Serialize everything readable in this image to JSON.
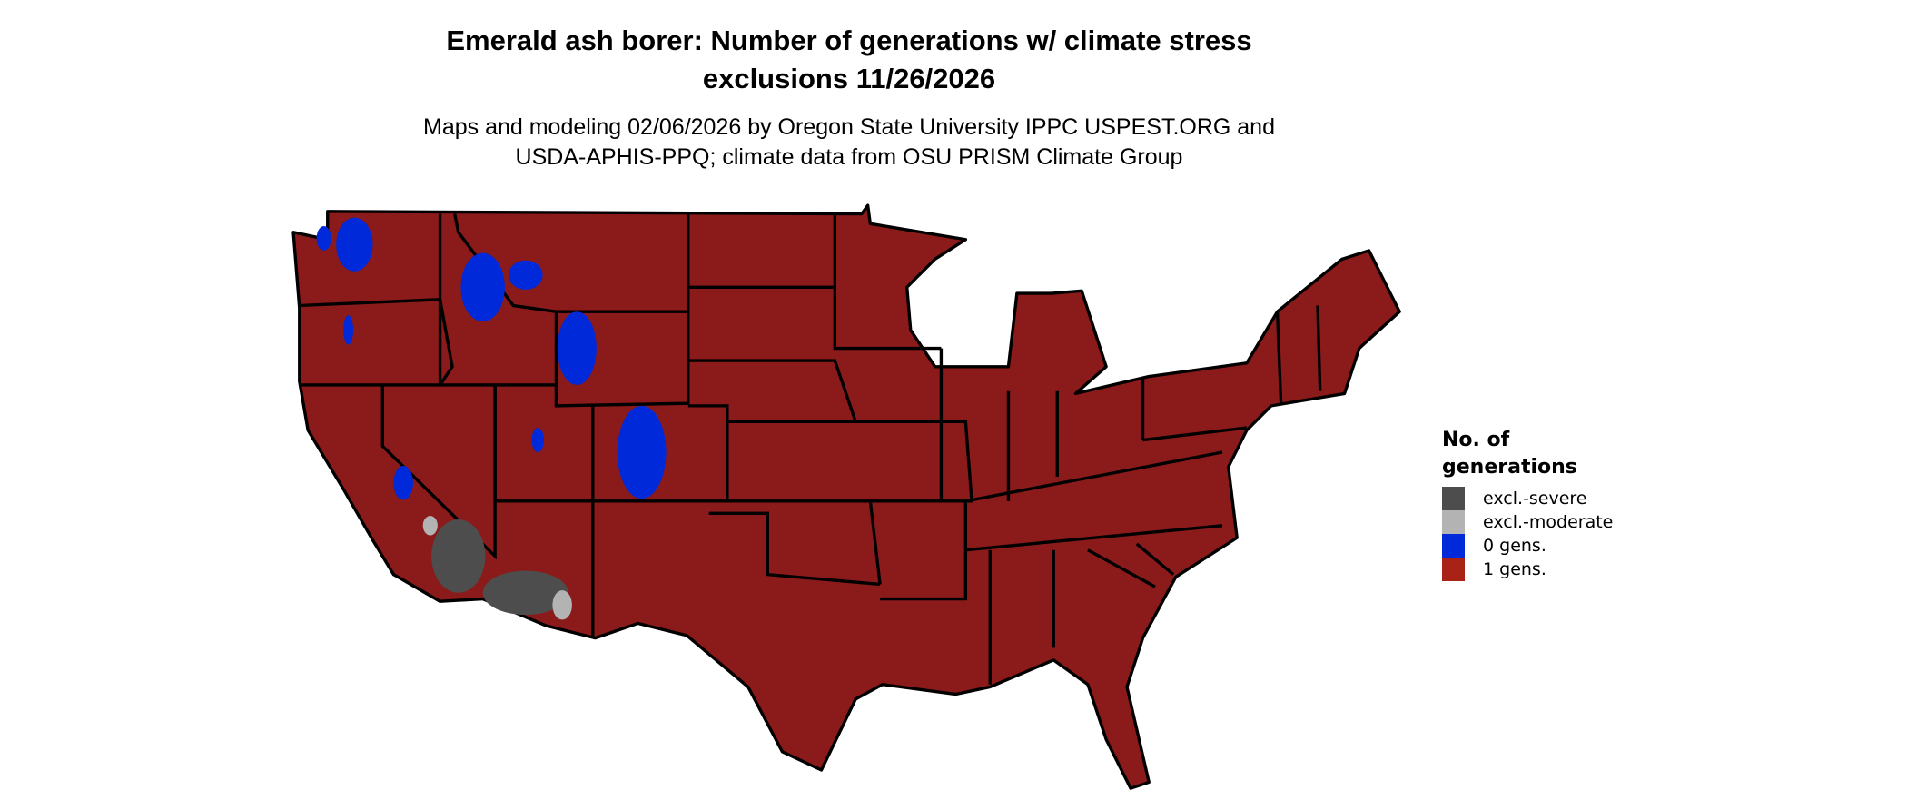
{
  "title": {
    "line1": "Emerald ash borer: Number of generations w/ climate stress",
    "line2": "exclusions 11/26/2026"
  },
  "subtitle": {
    "line1": "Maps and modeling 02/06/2026 by Oregon State University IPPC USPEST.ORG and",
    "line2": "USDA-APHIS-PPQ; climate data from OSU PRISM Climate Group"
  },
  "map": {
    "region": "Contiguous United States",
    "dominant_category": "1 gens.",
    "state_border_color": "#000000"
  },
  "legend": {
    "title_line1": "No. of",
    "title_line2": "generations",
    "items": [
      {
        "label": "excl.-severe",
        "color": "#4d4d4d"
      },
      {
        "label": "excl.-moderate",
        "color": "#b3b3b3"
      },
      {
        "label": "0 gens.",
        "color": "#0029d9"
      },
      {
        "label": "1 gens.",
        "color": "#a82316"
      }
    ]
  }
}
